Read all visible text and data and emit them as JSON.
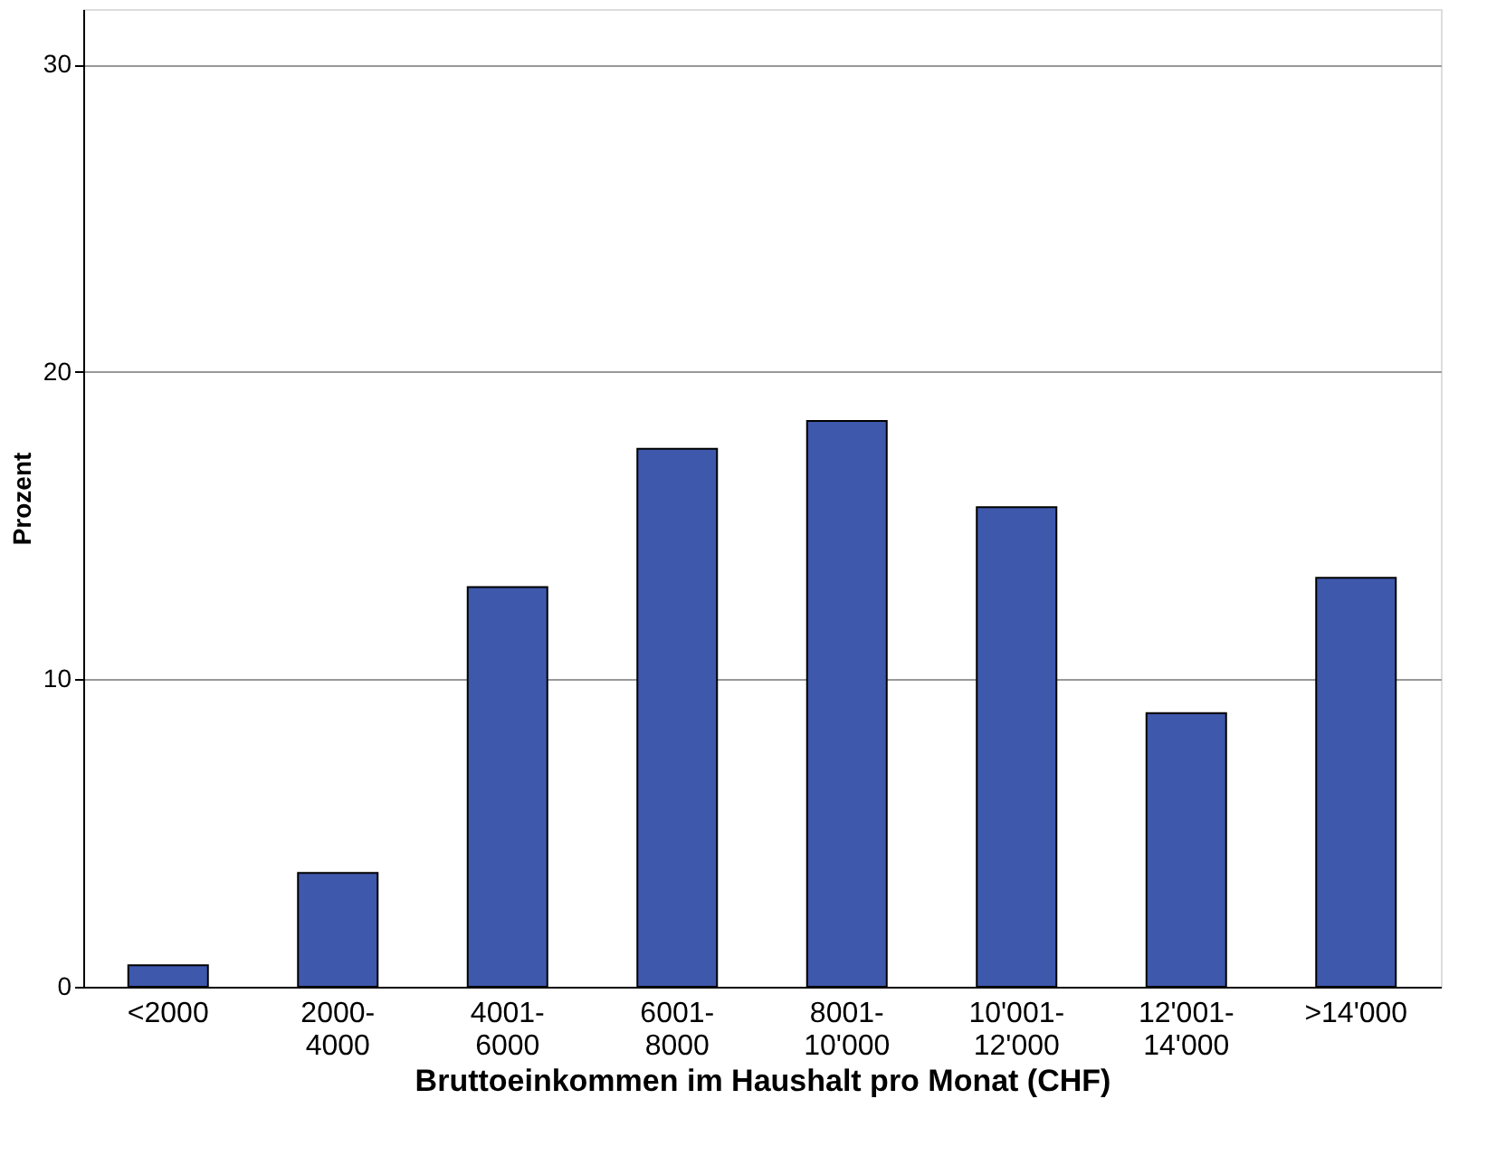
{
  "chart_data": {
    "type": "bar",
    "xlabel": "Bruttoeinkommen im Haushalt pro Monat (CHF)",
    "ylabel": "Prozent",
    "categories": [
      "<2000",
      "2000-\n4000",
      "4001-\n6000",
      "6001-\n8000",
      "8001-\n10'000",
      "10'001-\n12'000",
      "12'001-\n14'000",
      ">14'000"
    ],
    "values": [
      0.7,
      3.7,
      13.0,
      17.5,
      18.4,
      15.6,
      8.9,
      13.3
    ],
    "color": "#3e58ac",
    "ylim": [
      0,
      31.8
    ],
    "yticks": [
      0,
      10,
      20,
      30
    ],
    "grid": "y"
  }
}
